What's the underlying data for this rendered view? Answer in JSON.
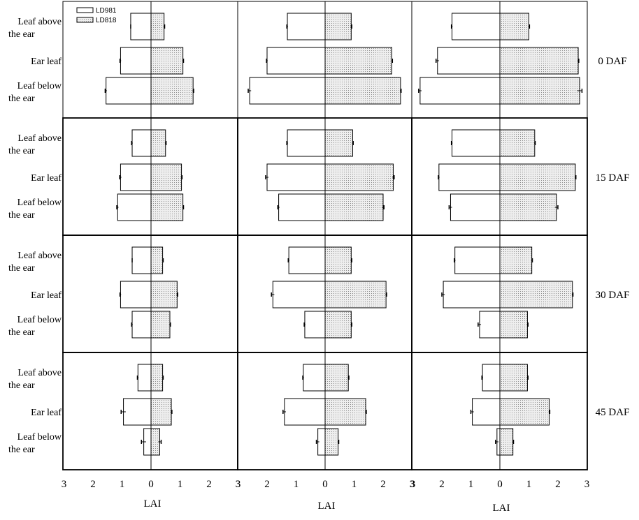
{
  "legend": {
    "series": [
      {
        "name": "LD981",
        "fill": "#ffffff"
      },
      {
        "name": "LD818",
        "fill": "#d6d6d6"
      }
    ]
  },
  "colors": {
    "axis": "#000000",
    "bar_stroke": "#000000",
    "pattern_dot": "#8c8c8c",
    "pattern_bg": "#eeeeee"
  },
  "row_labels": [
    "0 DAF",
    "15 DAF",
    "30 DAF",
    "45 DAF"
  ],
  "category_labels": [
    [
      "Leaf above",
      "the ear"
    ],
    [
      "Ear leaf"
    ],
    [
      "Leaf below",
      "the ear"
    ]
  ],
  "x_tick_labels": [
    "3",
    "2",
    "1",
    "0",
    "1",
    "2",
    "3"
  ],
  "x_axis_label": "LAI",
  "chart_data": {
    "type": "bar",
    "orientation": "horizontal-diverging",
    "xlabel": "LAI",
    "xlim": [
      -3,
      3
    ],
    "categories": [
      "Leaf above the ear",
      "Ear leaf",
      "Leaf below the ear"
    ],
    "series_names": [
      "LD981",
      "LD818"
    ],
    "panels": [
      {
        "row": "0 DAF",
        "col": 1,
        "LD981": [
          0.7,
          1.05,
          1.55
        ],
        "LD818": [
          0.45,
          1.1,
          1.45
        ],
        "LD981_err": [
          0.0,
          0.02,
          0.03
        ],
        "LD818_err": [
          0.02,
          0.02,
          0.02
        ]
      },
      {
        "row": "0 DAF",
        "col": 2,
        "LD981": [
          1.3,
          2.0,
          2.6
        ],
        "LD818": [
          0.9,
          2.3,
          2.6
        ],
        "LD981_err": [
          0.02,
          0.02,
          0.05
        ],
        "LD818_err": [
          0.02,
          0.02,
          0.02
        ]
      },
      {
        "row": "0 DAF",
        "col": 3,
        "LD981": [
          1.65,
          2.15,
          2.75
        ],
        "LD818": [
          1.0,
          2.7,
          2.75
        ],
        "LD981_err": [
          0.02,
          0.05,
          0.05
        ],
        "LD818_err": [
          0.02,
          0.02,
          0.08
        ]
      },
      {
        "row": "15 DAF",
        "col": 1,
        "LD981": [
          0.65,
          1.05,
          1.15
        ],
        "LD818": [
          0.5,
          1.05,
          1.1
        ],
        "LD981_err": [
          0.02,
          0.03,
          0.03
        ],
        "LD818_err": [
          0.02,
          0.02,
          0.02
        ]
      },
      {
        "row": "15 DAF",
        "col": 2,
        "LD981": [
          1.3,
          2.0,
          1.6
        ],
        "LD818": [
          0.95,
          2.35,
          2.0
        ],
        "LD981_err": [
          0.02,
          0.05,
          0.03
        ],
        "LD818_err": [
          0.02,
          0.03,
          0.03
        ]
      },
      {
        "row": "15 DAF",
        "col": 3,
        "LD981": [
          1.65,
          2.1,
          1.7
        ],
        "LD818": [
          1.2,
          2.6,
          1.95
        ],
        "LD981_err": [
          0.02,
          0.02,
          0.05
        ],
        "LD818_err": [
          0.02,
          0.02,
          0.05
        ]
      },
      {
        "row": "30 DAF",
        "col": 1,
        "LD981": [
          0.65,
          1.05,
          0.65
        ],
        "LD818": [
          0.4,
          0.9,
          0.65
        ],
        "LD981_err": [
          0.0,
          0.02,
          0.02
        ],
        "LD818_err": [
          0.02,
          0.02,
          0.02
        ]
      },
      {
        "row": "30 DAF",
        "col": 2,
        "LD981": [
          1.25,
          1.8,
          0.7
        ],
        "LD818": [
          0.9,
          2.1,
          0.9
        ],
        "LD981_err": [
          0.02,
          0.05,
          0.02
        ],
        "LD818_err": [
          0.02,
          0.02,
          0.02
        ]
      },
      {
        "row": "30 DAF",
        "col": 3,
        "LD981": [
          1.55,
          1.95,
          0.7
        ],
        "LD818": [
          1.1,
          2.5,
          0.95
        ],
        "LD981_err": [
          0.02,
          0.05,
          0.05
        ],
        "LD818_err": [
          0.02,
          0.02,
          0.02
        ]
      },
      {
        "row": "45 DAF",
        "col": 1,
        "LD981": [
          0.45,
          0.95,
          0.25
        ],
        "LD818": [
          0.4,
          0.7,
          0.3
        ],
        "LD981_err": [
          0.02,
          0.08,
          0.08
        ],
        "LD818_err": [
          0.02,
          0.02,
          0.05
        ]
      },
      {
        "row": "45 DAF",
        "col": 2,
        "LD981": [
          0.75,
          1.4,
          0.25
        ],
        "LD818": [
          0.8,
          1.4,
          0.45
        ],
        "LD981_err": [
          0.02,
          0.05,
          0.05
        ],
        "LD818_err": [
          0.02,
          0.02,
          0.02
        ]
      },
      {
        "row": "45 DAF",
        "col": 3,
        "LD981": [
          0.6,
          0.95,
          0.1
        ],
        "LD818": [
          0.95,
          1.7,
          0.45
        ],
        "LD981_err": [
          0.02,
          0.05,
          0.05
        ],
        "LD818_err": [
          0.02,
          0.02,
          0.02
        ]
      }
    ]
  }
}
